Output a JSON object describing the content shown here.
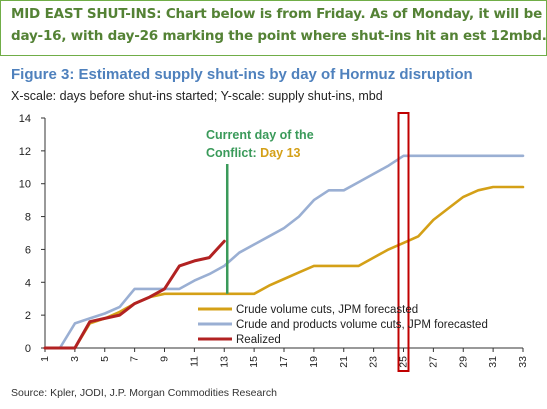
{
  "header": {
    "line1": "MID EAST SHUT-INS: Chart below is from Friday. As of Monday, it will be",
    "line2": "day-16, with day-26 marking the point where shut-ins hit an est 12mbd."
  },
  "figure": {
    "title": "Figure 3: Estimated supply shut-ins by day of Hormuz disruption",
    "subtitle": "X-scale: days before shut-ins started; Y-scale: supply shut-ins, mbd",
    "source": "Source: Kpler, JODI, J.P. Morgan Commodities Research"
  },
  "chart_data": {
    "type": "line",
    "xlabel": "",
    "ylabel": "",
    "xlim": [
      1,
      33
    ],
    "ylim": [
      0,
      14
    ],
    "x_ticks": [
      1,
      3,
      5,
      7,
      9,
      11,
      13,
      15,
      17,
      19,
      21,
      23,
      25,
      27,
      29,
      31,
      33
    ],
    "y_ticks": [
      0,
      2,
      4,
      6,
      8,
      10,
      12,
      14
    ],
    "grid": false,
    "legend_position": "bottom-right",
    "series": [
      {
        "name": "Crude volume cuts, JPM forecasted",
        "color": "#d4a017",
        "x": [
          1,
          2,
          3,
          4,
          5,
          6,
          7,
          8,
          9,
          10,
          11,
          12,
          13,
          14,
          15,
          16,
          17,
          18,
          19,
          20,
          21,
          22,
          23,
          24,
          25,
          26,
          27,
          28,
          29,
          30,
          31,
          32,
          33
        ],
        "values": [
          0,
          0,
          0,
          1.5,
          1.8,
          2.2,
          2.7,
          3.1,
          3.3,
          3.3,
          3.3,
          3.3,
          3.3,
          3.3,
          3.3,
          3.8,
          4.2,
          4.6,
          5.0,
          5.0,
          5.0,
          5.0,
          5.5,
          6.0,
          6.4,
          6.8,
          7.8,
          8.5,
          9.2,
          9.6,
          9.8,
          9.8,
          9.8
        ]
      },
      {
        "name": "Crude and products volume cuts, JPM forecasted",
        "color": "#9aafd3",
        "x": [
          1,
          2,
          3,
          4,
          5,
          6,
          7,
          8,
          9,
          10,
          11,
          12,
          13,
          14,
          15,
          16,
          17,
          18,
          19,
          20,
          21,
          22,
          23,
          24,
          25,
          26,
          27,
          28,
          29,
          30,
          31,
          32,
          33
        ],
        "values": [
          0,
          0,
          1.5,
          1.8,
          2.1,
          2.5,
          3.6,
          3.6,
          3.6,
          3.6,
          4.1,
          4.5,
          5.0,
          5.8,
          6.3,
          6.8,
          7.3,
          8.0,
          9.0,
          9.6,
          9.6,
          10.1,
          10.6,
          11.1,
          11.7,
          11.7,
          11.7,
          11.7,
          11.7,
          11.7,
          11.7,
          11.7,
          11.7
        ]
      },
      {
        "name": "Realized",
        "color": "#b22222",
        "x": [
          1,
          2,
          3,
          4,
          5,
          6,
          7,
          8,
          9,
          10,
          11,
          12,
          13
        ],
        "values": [
          0,
          0,
          0,
          1.6,
          1.8,
          2.0,
          2.7,
          3.1,
          3.6,
          5.0,
          5.3,
          5.5,
          6.5
        ]
      }
    ],
    "annotations": [
      {
        "id": "current-day",
        "label_prefix": "Current day of the",
        "label_conflict": "Conflict: ",
        "label_day": "Day 13",
        "x": 13.2,
        "y_from": 3.3,
        "y_to": 11.2,
        "color": "#3a9a5a",
        "day_color": "#d4a017"
      },
      {
        "id": "highlight-day-25",
        "x": 25,
        "color": "#c00000"
      }
    ]
  }
}
